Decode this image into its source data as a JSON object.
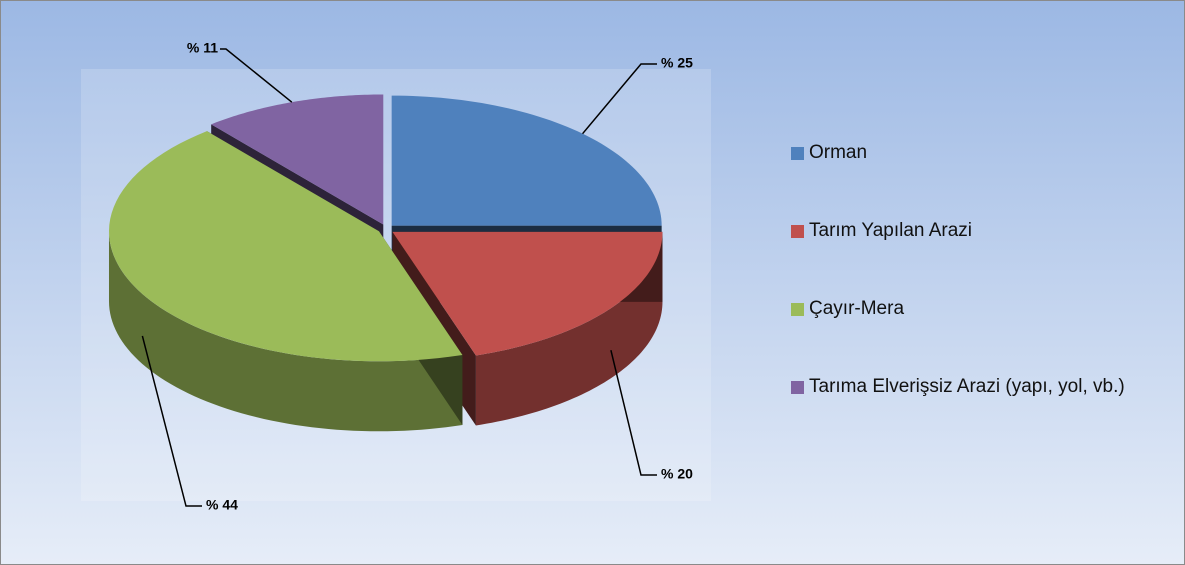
{
  "chart_data": {
    "type": "pie",
    "categories": [
      "Orman",
      "Tarım Yapılan Arazi",
      "Çayır-Mera",
      "Tarıma Elverişsiz Arazi (yapı, yol, vb.)"
    ],
    "values": [
      25,
      20,
      44,
      11
    ],
    "value_labels": [
      "% 25",
      "% 20",
      "% 44",
      "% 11"
    ],
    "colors": [
      "#4f81bd",
      "#c0504d",
      "#9bbb59",
      "#8064a2"
    ],
    "legend": "right"
  }
}
